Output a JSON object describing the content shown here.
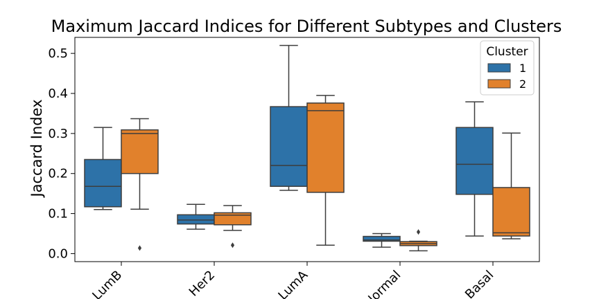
{
  "chart_data": {
    "type": "boxplot",
    "title": "Maximum Jaccard Indices for Different Subtypes and Clusters",
    "xlabel": "",
    "ylabel": "Jaccard Index",
    "ylim": [
      -0.02,
      0.54
    ],
    "yticks": [
      "0.0",
      "0.1",
      "0.2",
      "0.3",
      "0.4",
      "0.5"
    ],
    "categories": [
      "LumB",
      "Her2",
      "LumA",
      "Normal",
      "Basal"
    ],
    "legend": {
      "title": "Cluster",
      "position": "top-right"
    },
    "grid": false,
    "series": [
      {
        "name": "1",
        "color": "#2d72a8",
        "boxes": [
          {
            "whisker_low": 0.11,
            "q1": 0.117,
            "median": 0.168,
            "q3": 0.235,
            "whisker_high": 0.315,
            "outliers": []
          },
          {
            "whisker_low": 0.061,
            "q1": 0.074,
            "median": 0.084,
            "q3": 0.097,
            "whisker_high": 0.123,
            "outliers": []
          },
          {
            "whisker_low": 0.158,
            "q1": 0.168,
            "median": 0.22,
            "q3": 0.367,
            "whisker_high": 0.52,
            "outliers": []
          },
          {
            "whisker_low": 0.016,
            "q1": 0.031,
            "median": 0.034,
            "q3": 0.043,
            "whisker_high": 0.05,
            "outliers": []
          },
          {
            "whisker_low": 0.044,
            "q1": 0.148,
            "median": 0.223,
            "q3": 0.315,
            "whisker_high": 0.379,
            "outliers": []
          }
        ]
      },
      {
        "name": "2",
        "color": "#e1812c",
        "boxes": [
          {
            "whisker_low": 0.111,
            "q1": 0.2,
            "median": 0.3,
            "q3": 0.309,
            "whisker_high": 0.337,
            "outliers": [
              0.014
            ]
          },
          {
            "whisker_low": 0.058,
            "q1": 0.072,
            "median": 0.096,
            "q3": 0.102,
            "whisker_high": 0.12,
            "outliers": [
              0.021
            ]
          },
          {
            "whisker_low": 0.021,
            "q1": 0.153,
            "median": 0.357,
            "q3": 0.376,
            "whisker_high": 0.395,
            "outliers": []
          },
          {
            "whisker_low": 0.007,
            "q1": 0.02,
            "median": 0.025,
            "q3": 0.03,
            "whisker_high": 0.031,
            "outliers": [
              0.054
            ]
          },
          {
            "whisker_low": 0.037,
            "q1": 0.044,
            "median": 0.052,
            "q3": 0.165,
            "whisker_high": 0.301,
            "outliers": []
          }
        ]
      }
    ]
  }
}
